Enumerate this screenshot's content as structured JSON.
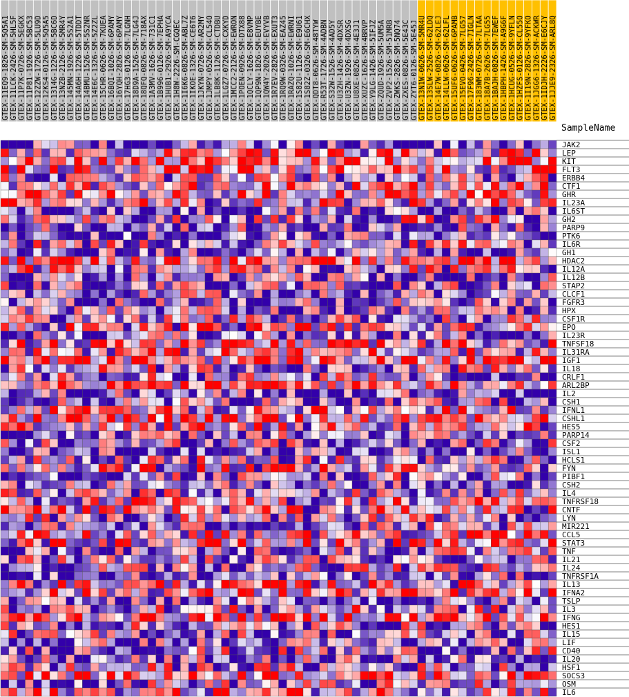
{
  "chart_data": {
    "type": "heatmap",
    "header_label": "SampleName",
    "column_group_colors": {
      "normal": "#c0c0c0",
      "highlighted": "#ffc000"
    },
    "color_scale": {
      "low": "#3300aa",
      "mid": "#ffffff",
      "high": "#ff0000"
    },
    "columns": [
      {
        "name": "GTEX-11EQ9-1826-SM-5Q5A1",
        "group": "normal"
      },
      {
        "name": "GTEX-11LCK-2426-SM-5HL5F",
        "group": "normal"
      },
      {
        "name": "GTEX-11P7K-0726-SM-5EGKX",
        "group": "normal"
      },
      {
        "name": "GTEX-11P81-1926-SM-5BC53",
        "group": "normal"
      },
      {
        "name": "GTEX-12ZZW-1726-SM-5LU9D",
        "group": "normal"
      },
      {
        "name": "GTEX-12KS4-0126-SM-5Q5A5",
        "group": "normal"
      },
      {
        "name": "GTEX-1314G-1226-SM-5BC6D",
        "group": "normal"
      },
      {
        "name": "GTEX-13NZB-2126-SM-5MR4Y",
        "group": "normal"
      },
      {
        "name": "GTEX-145MN-1926-SM-5S2A1",
        "group": "normal"
      },
      {
        "name": "GTEX-14A6H-1226-SM-5TDDT",
        "group": "normal"
      },
      {
        "name": "GTEX-14BMU-1526-SM-5S2NR",
        "group": "normal"
      },
      {
        "name": "GTEX-14E6C-1326-SM-5Z2ZL",
        "group": "normal"
      },
      {
        "name": "GTEX-15CHR-0626-SM-7KUEA",
        "group": "normal"
      },
      {
        "name": "GTEX-16BQI-1026-SM-6PAMY",
        "group": "normal"
      },
      {
        "name": "GTEX-16YQH-2826-SM-6PAMY",
        "group": "normal"
      },
      {
        "name": "GTEX-17HG3-0126-SM-7LGNH",
        "group": "normal"
      },
      {
        "name": "GTEX-18D9A-1526-SM-7LG4J",
        "group": "normal"
      },
      {
        "name": "GTEX-18QFQ-0826-SM-718AX",
        "group": "normal"
      },
      {
        "name": "GTEX-1A3MV-1626-SM-731C1",
        "group": "normal"
      },
      {
        "name": "GTEX-1B996-0126-SM-7EPHA",
        "group": "normal"
      },
      {
        "name": "GTEX-1HUB1-2926-SM-A9YCA",
        "group": "normal"
      },
      {
        "name": "GTEX-1H8W-2226-SM-CGQEC",
        "group": "normal"
      },
      {
        "name": "GTEX-1I6K6-0826-SM-ABL7Z",
        "group": "normal"
      },
      {
        "name": "GTEX-1IKOE-1326-SM-CE6T6",
        "group": "normal"
      },
      {
        "name": "GTEX-1JKYN-0726-SM-AR2MY",
        "group": "normal"
      },
      {
        "name": "GTEX-1JMPY-0526-SM-CL54O",
        "group": "normal"
      },
      {
        "name": "GTEX-1LB8K-1126-SM-CTDBU",
        "group": "normal"
      },
      {
        "name": "GTEX-1LGZ7-0726-SM-CXKYD",
        "group": "normal"
      },
      {
        "name": "GTEX-1MCC2-2126-SM-EWRON",
        "group": "normal"
      },
      {
        "name": "GTEX-1POEN-0926-SM-DTX88",
        "group": "normal"
      },
      {
        "name": "GTEX-1QCLY-1626-SM-E8VMP",
        "group": "normal"
      },
      {
        "name": "GTEX-1QP9N-1826-SM-EUYBE",
        "group": "normal"
      },
      {
        "name": "GTEX-1QW4Y-2026-SM-EVYVB",
        "group": "normal"
      },
      {
        "name": "GTEX-1R7EV-2826-SM-EXUT3",
        "group": "normal"
      },
      {
        "name": "GTEX-1RQ9W-0326-SM-EAZ45",
        "group": "normal"
      },
      {
        "name": "GTEX-1RAZQ-1026-SM-EWRNI",
        "group": "normal"
      },
      {
        "name": "GTEX-1S82U-1126-SM-E9U61",
        "group": "normal"
      },
      {
        "name": "GTEX-1S82Z-0326-SM-E6CHX",
        "group": "normal"
      },
      {
        "name": "GTEX-QDT8-0626-SM-48TYW",
        "group": "normal"
      },
      {
        "name": "GTEX-R53T-1726-SM-4ADBN",
        "group": "normal"
      },
      {
        "name": "GTEX-S32W-1526-SM-4AD5Y",
        "group": "normal"
      },
      {
        "name": "GTEX-U3ZH-1426-SM-4DXSR",
        "group": "normal"
      },
      {
        "name": "GTEX-U3ZN-1926-SM-4DXSG",
        "group": "normal"
      },
      {
        "name": "GTEX-U8XE-0826-SM-4E3J1",
        "group": "normal"
      },
      {
        "name": "GTEX-XUZC-1626-SM-4BRVP",
        "group": "normal"
      },
      {
        "name": "GTEX-Y9LG-1426-SM-5IFJZ",
        "group": "normal"
      },
      {
        "name": "GTEX-ZQUD-1926-SM-5UM5A",
        "group": "normal"
      },
      {
        "name": "GTEX-ZVP2-1526-SM-51MRB",
        "group": "normal"
      },
      {
        "name": "GTEX-ZWKS-2826-SM-5NQ74",
        "group": "normal"
      },
      {
        "name": "GTEX-ZXES-0826-SM-5E43C",
        "group": "normal"
      },
      {
        "name": "GTEX-ZYT6-0126-SM-5E45J",
        "group": "normal"
      },
      {
        "name": "GTEX-13N1W-0626-SM-5MR4U",
        "group": "highlighted"
      },
      {
        "name": "GTEX-13SLW-2526-SM-62LDQ",
        "group": "highlighted"
      },
      {
        "name": "GTEX-14E7W-0826-SM-62LEJ",
        "group": "highlighted"
      },
      {
        "name": "GTEX-14LLW-0626-SM-62LFL",
        "group": "highlighted"
      },
      {
        "name": "GTEX-15UF6-0626-SM-6PAMB",
        "group": "highlighted"
      },
      {
        "name": "GTEX-15EVO-0426-SM-7LG57",
        "group": "highlighted"
      },
      {
        "name": "GTEX-17F96-2426-SM-7IGLN",
        "group": "highlighted"
      },
      {
        "name": "GTEX-183WM-0726-SM-7LTAA",
        "group": "highlighted"
      },
      {
        "name": "GTEX-18A7B-2626-SM-7LG55",
        "group": "highlighted"
      },
      {
        "name": "GTEX-1BAJH-0826-SM-7EWEF",
        "group": "highlighted"
      },
      {
        "name": "GTEX-1HBPH-1426-SM-A9G6F",
        "group": "highlighted"
      },
      {
        "name": "GTEX-1HCUG-0526-SM-9YFLN",
        "group": "highlighted"
      },
      {
        "name": "GTEX-1HZFS-0126-SM-CL55O",
        "group": "highlighted"
      },
      {
        "name": "GTEX-1I19N-2826-SM-9YFKO",
        "group": "highlighted"
      },
      {
        "name": "GTEX-1JGG6-1326-SM-ACKWR",
        "group": "highlighted"
      },
      {
        "name": "GTEX-1IDJH-2226-SM-E6CJY",
        "group": "highlighted"
      },
      {
        "name": "GTEX-1JJE9-2326-SM-ARL8Q",
        "group": "highlighted"
      }
    ],
    "rows": [
      "JAK2",
      "LEP",
      "KIT",
      "FLT3",
      "ERBB4",
      "CTF1",
      "GHR",
      "IL23A",
      "IL6ST",
      "GH2",
      "PARP9",
      "PTK6",
      "IL6R",
      "GH1",
      "HDAC2",
      "IL12A",
      "IL12B",
      "STAP2",
      "CLCF1",
      "FGFR3",
      "HPX",
      "CSF1R",
      "EPO",
      "IL23R",
      "TNFSF18",
      "IL31RA",
      "IGF1",
      "IL18",
      "CRLF1",
      "ARL2BP",
      "IL2",
      "CSH1",
      "IFNL1",
      "CSHL1",
      "HES5",
      "PARP14",
      "CSF2",
      "ISL1",
      "HCLS1",
      "FYN",
      "PIBF1",
      "CSH2",
      "IL4",
      "TNFRSF18",
      "CNTF",
      "LYN",
      "MIR221",
      "CCL5",
      "STAT3",
      "TNF",
      "IL21",
      "IL24",
      "TNFRSF1A",
      "IL13",
      "IFNA2",
      "TSLP",
      "IL3",
      "IFNG",
      "HES1",
      "IL15",
      "LIF",
      "CD40",
      "IL20",
      "HSF1",
      "SOCS3",
      "OSM",
      "IL6"
    ],
    "value_scale": "row z-score (-1 blue, 0 white, +1 red)",
    "values": []
  }
}
